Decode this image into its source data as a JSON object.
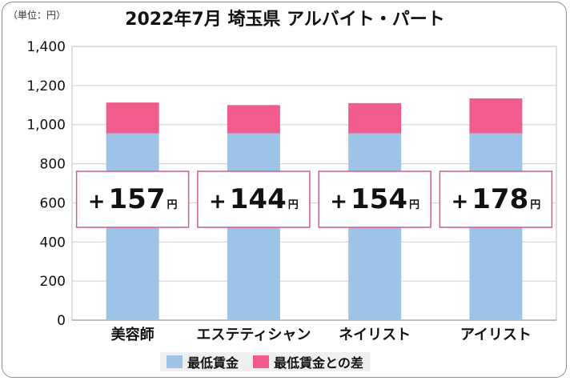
{
  "unit_label": "（単位：円）",
  "title": "2022年7月 埼玉県 アルバイト・パート",
  "colors": {
    "base": "#9dc3e6",
    "diff": "#f25c8c",
    "badge_border": "#d45c8c",
    "grid": "#d0d0d0"
  },
  "chart_data": {
    "type": "bar",
    "stacked": true,
    "categories": [
      "美容師",
      "エステティシャン",
      "ネイリスト",
      "アイリスト"
    ],
    "series": [
      {
        "name": "最低賃金",
        "values": [
          956,
          956,
          956,
          956
        ]
      },
      {
        "name": "最低賃金との差",
        "values": [
          157,
          144,
          154,
          178
        ]
      }
    ],
    "ylim": [
      0,
      1400
    ],
    "yticks": [
      "0",
      "200",
      "400",
      "600",
      "800",
      "1,000",
      "1,200",
      "1,400"
    ],
    "annotations": [
      {
        "sign": "+",
        "value": "157",
        "unit": "円"
      },
      {
        "sign": "+",
        "value": "144",
        "unit": "円"
      },
      {
        "sign": "+",
        "value": "154",
        "unit": "円"
      },
      {
        "sign": "+",
        "value": "178",
        "unit": "円"
      }
    ],
    "grid": true,
    "legend_position": "bottom"
  }
}
